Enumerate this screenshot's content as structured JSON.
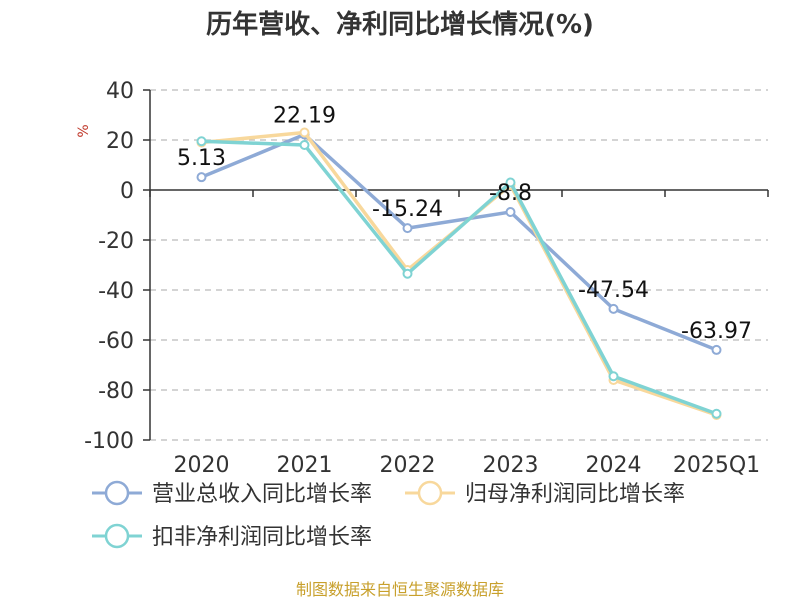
{
  "chart_data": {
    "type": "line",
    "title": "历年营收、净利同比增长情况(%)",
    "ylabel": "%",
    "categories": [
      "2020",
      "2021",
      "2022",
      "2023",
      "2024",
      "2025Q1"
    ],
    "ylim": [
      -100,
      40
    ],
    "yticks": [
      40,
      20,
      0,
      -20,
      -40,
      -60,
      -80,
      -100
    ],
    "grid": true,
    "legend_position": "bottom",
    "series": [
      {
        "name": "营业总收入同比增长率",
        "color": "#8eaad6",
        "values": [
          5.13,
          22.19,
          -15.24,
          -8.8,
          -47.54,
          -63.97
        ],
        "labels": [
          "5.13",
          "22.19",
          "-15.24",
          "-8.8",
          "-47.54",
          "-63.97"
        ]
      },
      {
        "name": "归母净利润同比增长率",
        "color": "#f8d89c",
        "values": [
          19,
          23,
          -32,
          2,
          -76,
          -90
        ]
      },
      {
        "name": "扣非净利润同比增长率",
        "color": "#7fd3d3",
        "values": [
          19.5,
          18,
          -33.5,
          3,
          -74.5,
          -89.5
        ]
      }
    ],
    "source": "制图数据来自恒生聚源数据库"
  }
}
